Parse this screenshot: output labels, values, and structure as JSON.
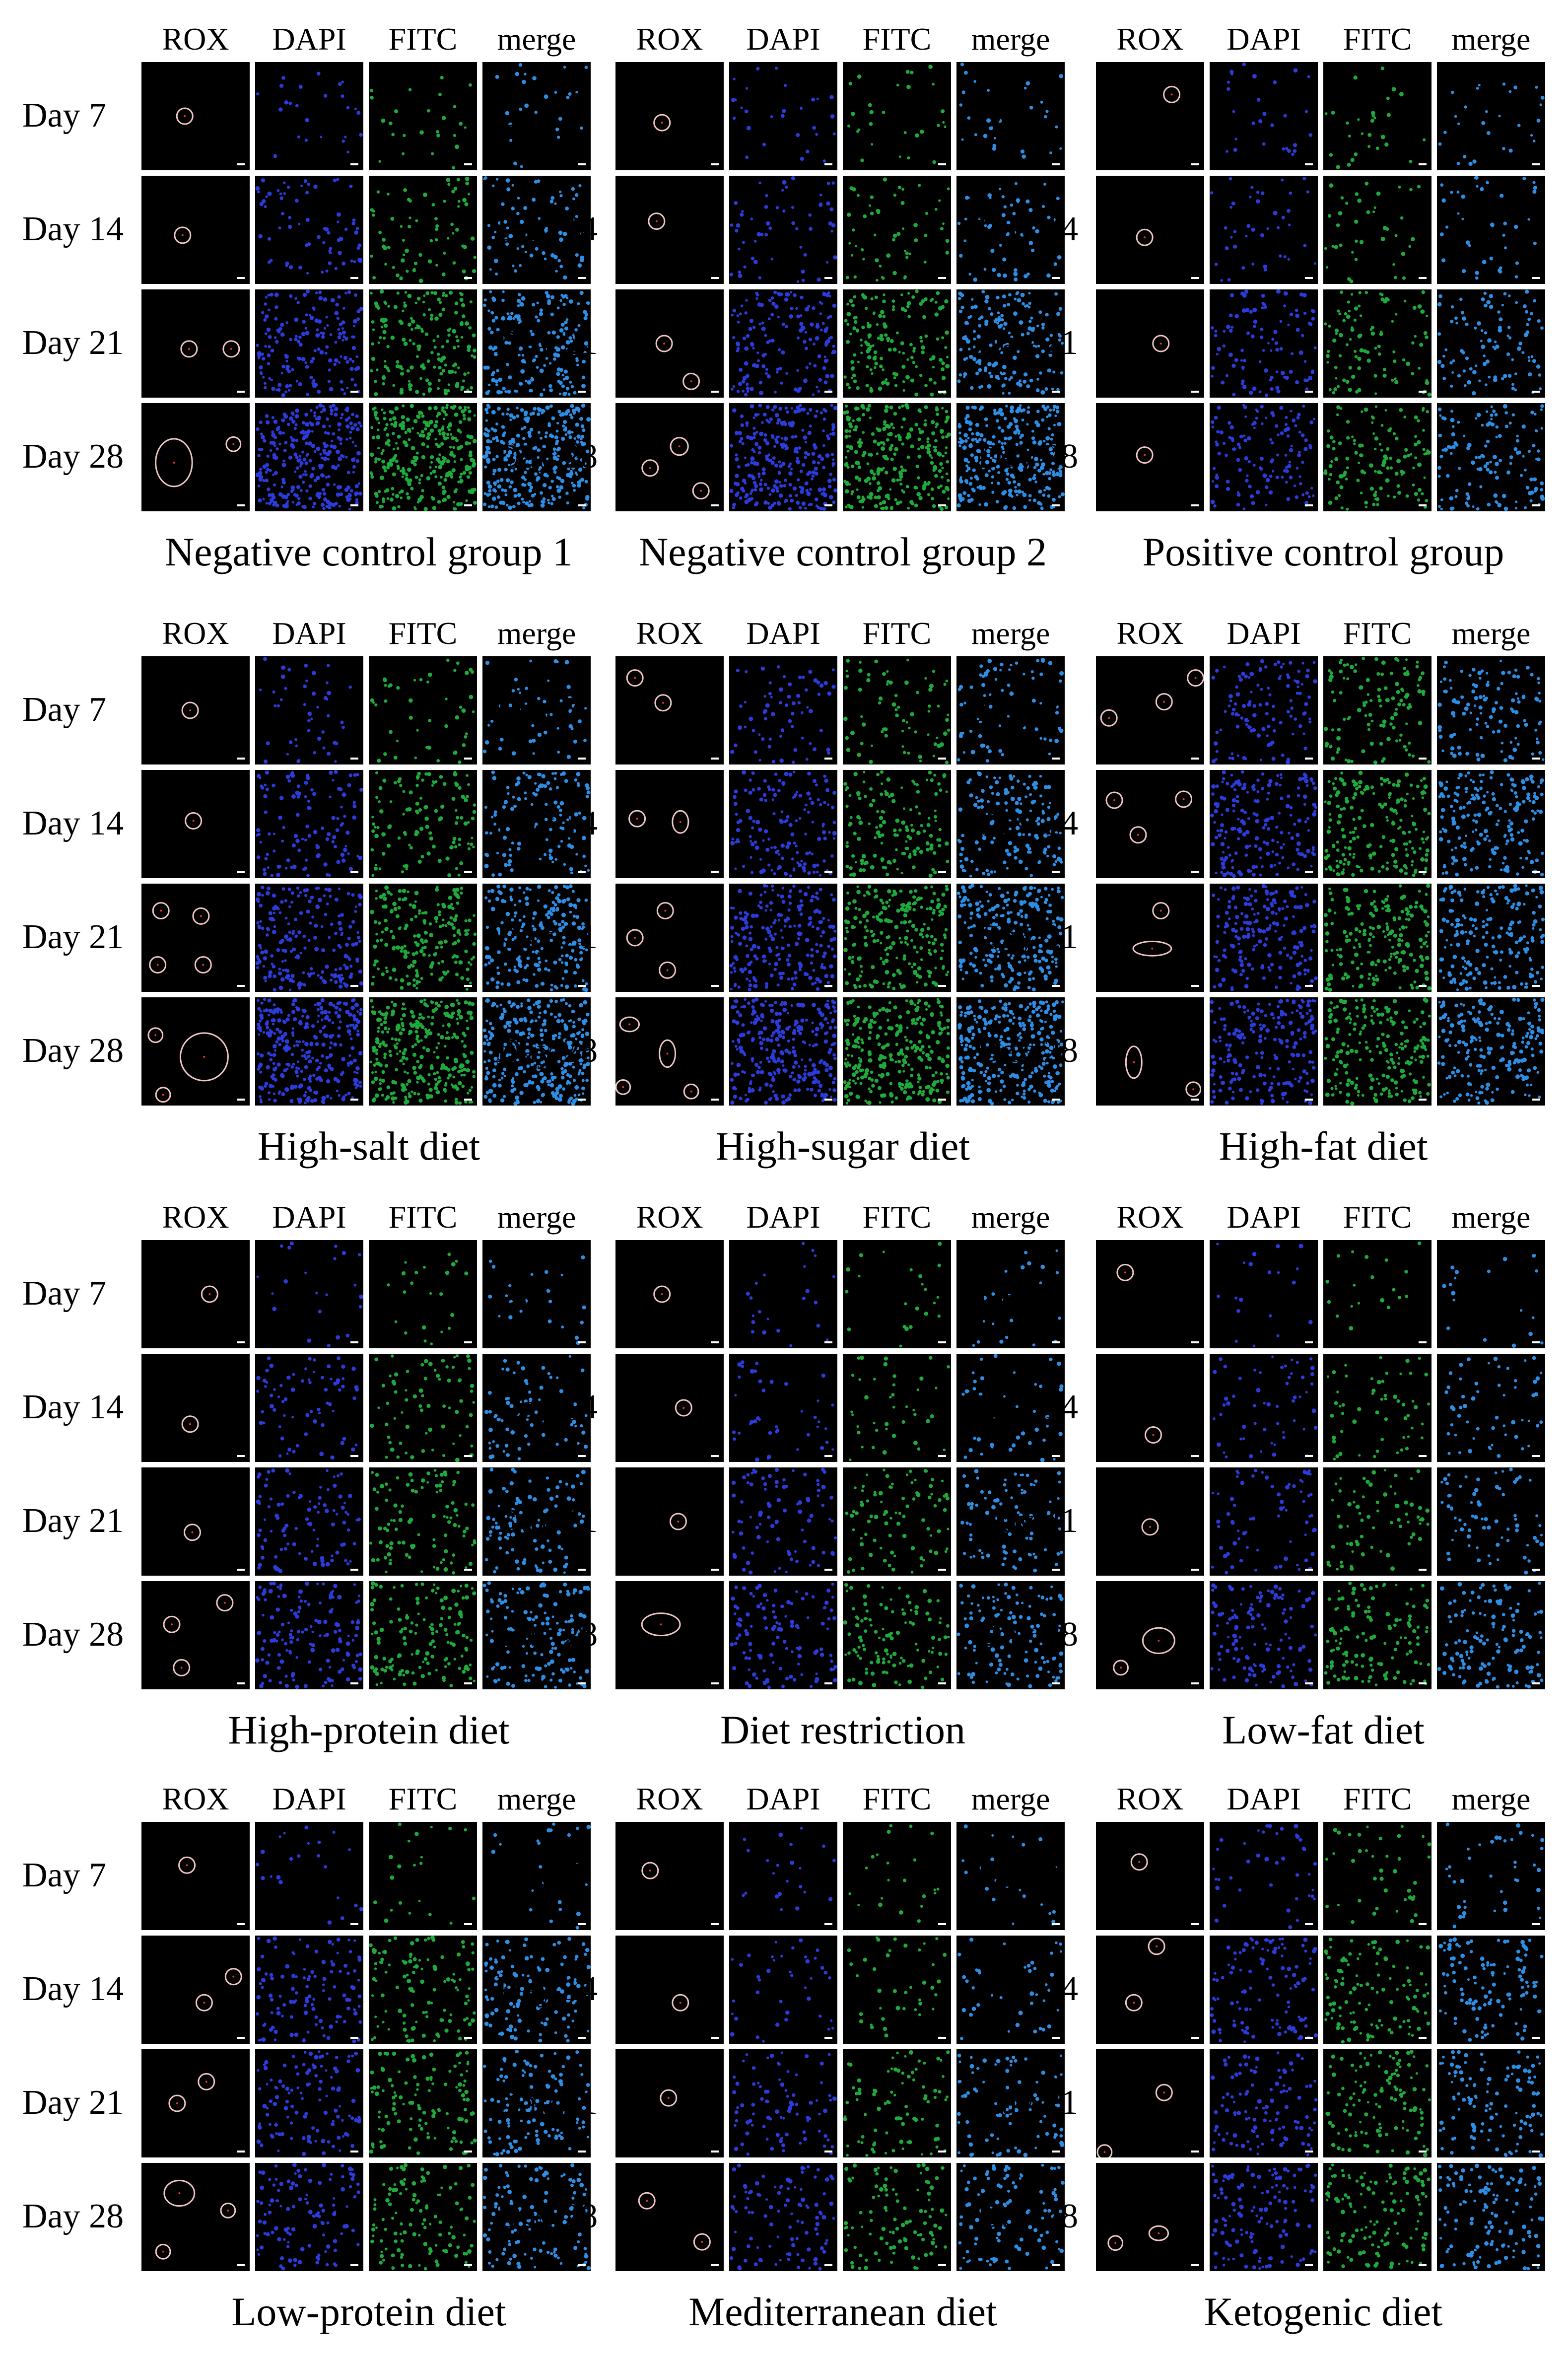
{
  "channels": [
    "ROX",
    "DAPI",
    "FITC",
    "merge"
  ],
  "days": [
    "Day 7",
    "Day 14",
    "Day 21",
    "Day 28"
  ],
  "groups": [
    {
      "title": "Negative control group 1",
      "density": [
        0.05,
        0.2,
        0.55,
        0.95
      ],
      "rox": [
        [
          [
            0.4,
            0.5,
            10,
            10
          ]
        ],
        [
          [
            0.38,
            0.55,
            10,
            10
          ]
        ],
        [
          [
            0.44,
            0.55,
            10,
            10
          ],
          [
            0.83,
            0.55,
            10,
            10
          ]
        ],
        [
          [
            0.3,
            0.55,
            23,
            30
          ],
          [
            0.85,
            0.38,
            9,
            9
          ]
        ]
      ]
    },
    {
      "title": "Negative control group 2",
      "density": [
        0.06,
        0.15,
        0.5,
        0.85
      ],
      "rox": [
        [
          [
            0.43,
            0.56,
            10,
            10
          ]
        ],
        [
          [
            0.38,
            0.42,
            10,
            10
          ]
        ],
        [
          [
            0.45,
            0.5,
            10,
            10
          ],
          [
            0.7,
            0.85,
            10,
            10
          ]
        ],
        [
          [
            0.59,
            0.4,
            11,
            11
          ],
          [
            0.32,
            0.6,
            10,
            10
          ],
          [
            0.79,
            0.81,
            10,
            10
          ]
        ]
      ]
    },
    {
      "title": "Positive control group",
      "density": [
        0.06,
        0.1,
        0.3,
        0.4
      ],
      "rox": [
        [
          [
            0.7,
            0.3,
            10,
            10
          ]
        ],
        [
          [
            0.45,
            0.57,
            10,
            10
          ]
        ],
        [
          [
            0.6,
            0.5,
            10,
            10
          ]
        ],
        [
          [
            0.45,
            0.48,
            10,
            10
          ]
        ]
      ]
    },
    {
      "title": "High-salt diet",
      "density": [
        0.12,
        0.35,
        0.65,
        1.0
      ],
      "rox": [
        [
          [
            0.45,
            0.5,
            10,
            10
          ]
        ],
        [
          [
            0.48,
            0.47,
            10,
            10
          ]
        ],
        [
          [
            0.18,
            0.25,
            10,
            10
          ],
          [
            0.55,
            0.3,
            10,
            10
          ],
          [
            0.15,
            0.75,
            10,
            10
          ],
          [
            0.57,
            0.75,
            10,
            10
          ]
        ],
        [
          [
            0.13,
            0.35,
            9,
            9
          ],
          [
            0.58,
            0.55,
            30,
            30
          ],
          [
            0.2,
            0.9,
            9,
            9
          ]
        ]
      ]
    },
    {
      "title": "High-sugar diet",
      "density": [
        0.2,
        0.45,
        0.7,
        0.95
      ],
      "rox": [
        [
          [
            0.18,
            0.2,
            10,
            10
          ],
          [
            0.44,
            0.43,
            10,
            10
          ]
        ],
        [
          [
            0.2,
            0.45,
            10,
            10
          ],
          [
            0.6,
            0.48,
            10,
            14
          ]
        ],
        [
          [
            0.46,
            0.25,
            10,
            10
          ],
          [
            0.18,
            0.5,
            10,
            10
          ],
          [
            0.48,
            0.8,
            10,
            10
          ]
        ],
        [
          [
            0.13,
            0.25,
            12,
            9
          ],
          [
            0.48,
            0.52,
            10,
            17
          ],
          [
            0.07,
            0.83,
            9,
            9
          ],
          [
            0.7,
            0.87,
            9,
            9
          ]
        ]
      ]
    },
    {
      "title": "High-fat diet",
      "density": [
        0.35,
        0.6,
        0.6,
        0.65
      ],
      "rox": [
        [
          [
            0.92,
            0.2,
            10,
            10
          ],
          [
            0.63,
            0.42,
            10,
            10
          ],
          [
            0.12,
            0.57,
            10,
            10
          ]
        ],
        [
          [
            0.17,
            0.28,
            10,
            10
          ],
          [
            0.81,
            0.27,
            10,
            10
          ],
          [
            0.39,
            0.6,
            10,
            10
          ]
        ],
        [
          [
            0.6,
            0.25,
            10,
            10
          ],
          [
            0.52,
            0.6,
            24,
            9
          ]
        ],
        [
          [
            0.35,
            0.6,
            10,
            20
          ],
          [
            0.9,
            0.85,
            9,
            9
          ]
        ]
      ]
    },
    {
      "title": "High-protein diet",
      "density": [
        0.04,
        0.2,
        0.3,
        0.45
      ],
      "rox": [
        [
          [
            0.63,
            0.5,
            10,
            10
          ]
        ],
        [
          [
            0.45,
            0.65,
            10,
            10
          ]
        ],
        [
          [
            0.47,
            0.6,
            10,
            10
          ]
        ],
        [
          [
            0.77,
            0.2,
            10,
            10
          ],
          [
            0.28,
            0.4,
            10,
            10
          ],
          [
            0.37,
            0.8,
            10,
            10
          ]
        ]
      ]
    },
    {
      "title": "Diet restriction",
      "density": [
        0.04,
        0.1,
        0.25,
        0.35
      ],
      "rox": [
        [
          [
            0.43,
            0.5,
            10,
            10
          ]
        ],
        [
          [
            0.63,
            0.5,
            10,
            10
          ]
        ],
        [
          [
            0.58,
            0.5,
            10,
            10
          ]
        ],
        [
          [
            0.42,
            0.4,
            24,
            14
          ]
        ]
      ]
    },
    {
      "title": "Low-fat diet",
      "density": [
        0.03,
        0.15,
        0.2,
        0.4
      ],
      "rox": [
        [
          [
            0.27,
            0.3,
            10,
            10
          ]
        ],
        [
          [
            0.53,
            0.75,
            10,
            10
          ]
        ],
        [
          [
            0.5,
            0.55,
            10,
            10
          ]
        ],
        [
          [
            0.58,
            0.55,
            20,
            16
          ],
          [
            0.23,
            0.8,
            9,
            9
          ]
        ]
      ]
    },
    {
      "title": "Low-protein diet",
      "density": [
        0.04,
        0.35,
        0.35,
        0.35
      ],
      "rox": [
        [
          [
            0.42,
            0.4,
            10,
            10
          ]
        ],
        [
          [
            0.85,
            0.38,
            10,
            10
          ],
          [
            0.58,
            0.62,
            10,
            10
          ]
        ],
        [
          [
            0.6,
            0.3,
            10,
            10
          ],
          [
            0.33,
            0.5,
            10,
            10
          ]
        ],
        [
          [
            0.35,
            0.28,
            19,
            16
          ],
          [
            0.8,
            0.44,
            9,
            9
          ],
          [
            0.2,
            0.82,
            9,
            9
          ]
        ]
      ]
    },
    {
      "title": "Mediterranean diet",
      "density": [
        0.04,
        0.1,
        0.25,
        0.3
      ],
      "rox": [
        [
          [
            0.32,
            0.45,
            10,
            10
          ]
        ],
        [
          [
            0.6,
            0.62,
            10,
            10
          ]
        ],
        [
          [
            0.49,
            0.45,
            10,
            10
          ]
        ],
        [
          [
            0.29,
            0.35,
            10,
            10
          ],
          [
            0.8,
            0.73,
            10,
            10
          ]
        ]
      ]
    },
    {
      "title": "Ketogenic diet",
      "density": [
        0.1,
        0.35,
        0.35,
        0.4
      ],
      "rox": [
        [
          [
            0.4,
            0.37,
            10,
            10
          ]
        ],
        [
          [
            0.56,
            0.1,
            10,
            10
          ],
          [
            0.35,
            0.62,
            10,
            10
          ]
        ],
        [
          [
            0.63,
            0.4,
            10,
            10
          ],
          [
            0.08,
            0.95,
            9,
            9
          ]
        ],
        [
          [
            0.58,
            0.65,
            12,
            9
          ],
          [
            0.18,
            0.74,
            9,
            9
          ]
        ]
      ]
    }
  ],
  "colors": {
    "background": "#000000",
    "rox_circle": "#f3c7c7",
    "rox_dot": "#ff2b2b",
    "dapi": "#2c3cdc",
    "fitc": "#1faa3c",
    "merge": "#2d8ee6",
    "scale_bar": "#ffffff"
  }
}
